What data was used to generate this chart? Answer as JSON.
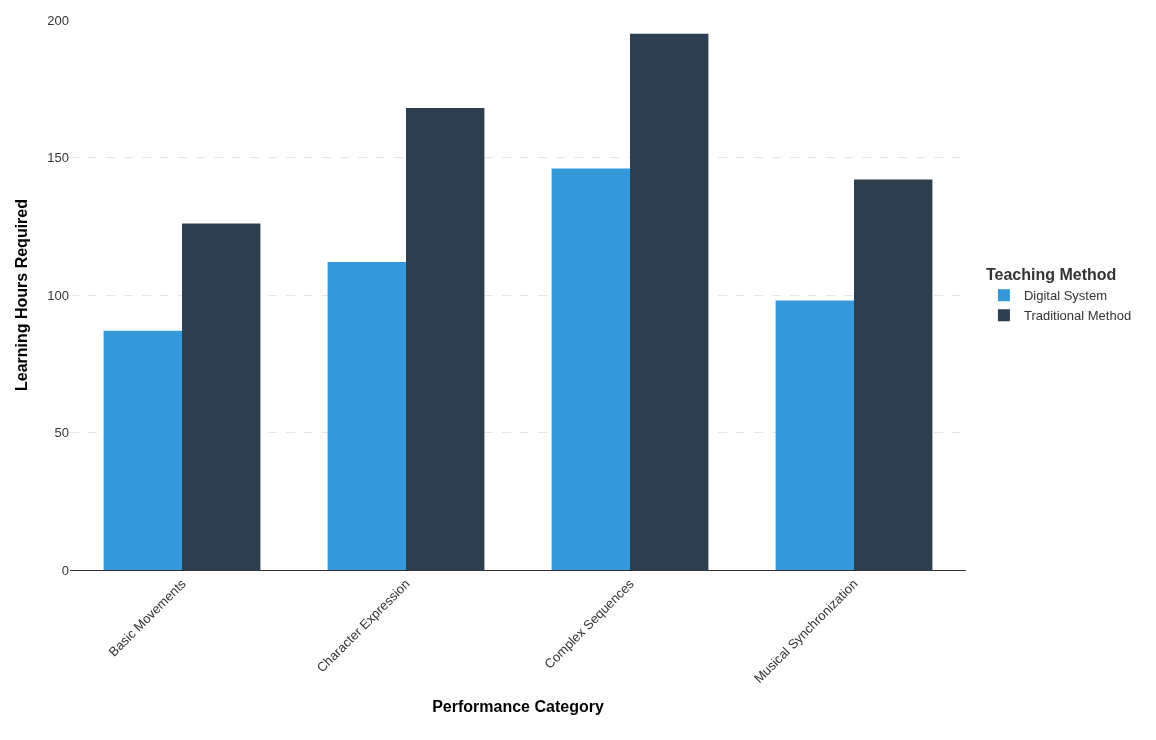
{
  "chart_data": {
    "type": "bar",
    "xlabel": "Performance Category",
    "ylabel": "Learning Hours Required",
    "legend_title": "Teaching Method",
    "categories": [
      "Basic Movements",
      "Character Expression",
      "Complex Sequences",
      "Musical Synchronization"
    ],
    "series": [
      {
        "name": "Digital System",
        "color": "#3498db",
        "values": [
          87,
          112,
          146,
          98
        ]
      },
      {
        "name": "Traditional Method",
        "color": "#2c3e50",
        "values": [
          126,
          168,
          195,
          142
        ]
      }
    ],
    "ylim": [
      0,
      200
    ],
    "yticks": [
      0,
      50,
      100,
      150,
      200
    ],
    "grid": "y",
    "legend": "right"
  }
}
